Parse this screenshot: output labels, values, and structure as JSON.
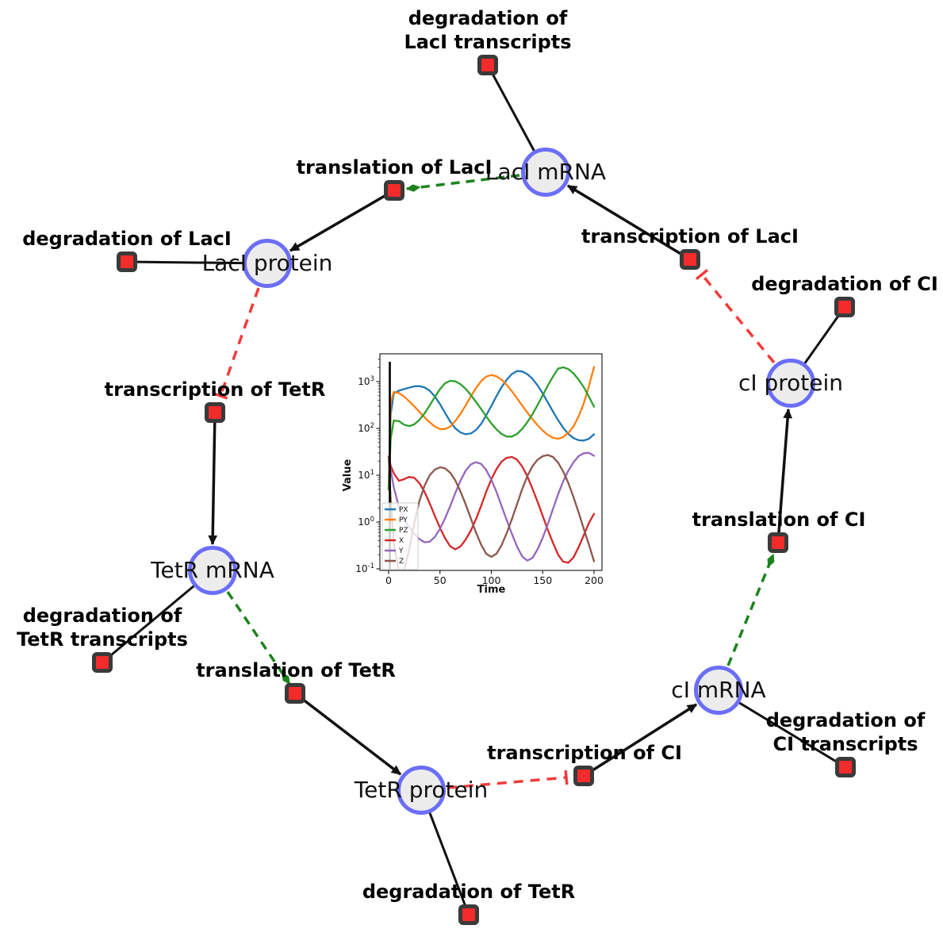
{
  "figure": {
    "background": "#ffffff",
    "colors": {
      "species_fill": "#ececec",
      "species_border": "#6b6ef7",
      "reaction_fill": "#f32b2b",
      "reaction_border": "#3a3a3a",
      "consumption_edge": "#111111",
      "production_edge": "#111111",
      "activation_edge": "#1c831c",
      "inhibition_edge": "#f23b3b"
    }
  },
  "diagram": {
    "species": {
      "laci_mrna": {
        "label": "LacI mRNA"
      },
      "laci_protein": {
        "label": "LacI protein"
      },
      "ci_protein": {
        "label": "cI protein"
      },
      "tetr_mrna": {
        "label": "TetR mRNA"
      },
      "tetr_protein": {
        "label": "TetR protein"
      },
      "ci_mrna": {
        "label": "cI mRNA"
      }
    },
    "reactions": {
      "deg_laci_tx": {
        "label": "degradation of LacI transcripts"
      },
      "transl_laci": {
        "label": "translation of LacI"
      },
      "txn_laci": {
        "label": "transcription of LacI"
      },
      "deg_laci": {
        "label": "degradation of LacI"
      },
      "deg_ci": {
        "label": "degradation of CI"
      },
      "txn_tetr": {
        "label": "transcription of TetR"
      },
      "deg_tetr_tx": {
        "label": "degradation of TetR transcripts"
      },
      "transl_tetr": {
        "label": "translation of TetR"
      },
      "txn_ci": {
        "label": "transcription of CI"
      },
      "deg_tetr": {
        "label": "degradation of TetR"
      },
      "deg_ci_tx": {
        "label": "degradation of CI transcripts"
      },
      "transl_ci": {
        "label": "translation of CI"
      }
    }
  },
  "chart_data": {
    "type": "line",
    "title": "",
    "xlabel": "Time",
    "ylabel": "Value",
    "x_ticks": [
      0,
      50,
      100,
      150,
      200
    ],
    "y_scale": "log",
    "y_tick_exponents": [
      -1,
      0,
      1,
      2,
      3
    ],
    "xlim": [
      -8,
      208
    ],
    "ylim": [
      0.07,
      4500
    ],
    "grid": false,
    "legend_position": "lower left",
    "vline_at_x": 0,
    "x": [
      0,
      2,
      5,
      10,
      15,
      20,
      25,
      30,
      35,
      40,
      45,
      50,
      55,
      60,
      65,
      70,
      75,
      80,
      85,
      90,
      95,
      100,
      105,
      110,
      115,
      120,
      125,
      130,
      135,
      140,
      145,
      150,
      155,
      160,
      165,
      170,
      175,
      180,
      185,
      190,
      195,
      200
    ],
    "series": [
      {
        "name": "PX",
        "color": "#1f77b4",
        "values": [
          5,
          200,
          560,
          640,
          690,
          740,
          790,
          800,
          750,
          640,
          480,
          330,
          215,
          140,
          100,
          82,
          75,
          78,
          92,
          125,
          190,
          300,
          490,
          760,
          1100,
          1450,
          1680,
          1650,
          1450,
          1150,
          830,
          560,
          360,
          230,
          150,
          103,
          76,
          62,
          56,
          55,
          60,
          75
        ]
      },
      {
        "name": "PY",
        "color": "#ff7f0e",
        "values": [
          5,
          350,
          600,
          570,
          480,
          380,
          295,
          225,
          172,
          135,
          110,
          97,
          97,
          110,
          145,
          205,
          310,
          480,
          720,
          1020,
          1280,
          1380,
          1300,
          1100,
          850,
          620,
          440,
          310,
          220,
          158,
          117,
          90,
          73,
          63,
          60,
          65,
          80,
          110,
          180,
          340,
          800,
          2050
        ]
      },
      {
        "name": "PZ",
        "color": "#2ca02c",
        "values": [
          5,
          60,
          148,
          143,
          120,
          112,
          122,
          152,
          210,
          310,
          470,
          690,
          920,
          1040,
          1010,
          880,
          700,
          520,
          370,
          260,
          180,
          128,
          95,
          76,
          67,
          67,
          76,
          97,
          135,
          200,
          315,
          510,
          820,
          1280,
          1900,
          2020,
          1850,
          1500,
          1100,
          760,
          480,
          290
        ]
      },
      {
        "name": "X",
        "color": "#d62728",
        "values": [
          25,
          16,
          11,
          7.6,
          8.2,
          9.2,
          8.8,
          6.8,
          4.4,
          2.5,
          1.35,
          0.75,
          0.45,
          0.3,
          0.26,
          0.3,
          0.42,
          0.65,
          1.15,
          2.2,
          4.4,
          8.2,
          13.5,
          19.5,
          23.5,
          24.5,
          21.5,
          15.5,
          9.5,
          5.2,
          2.7,
          1.35,
          0.68,
          0.36,
          0.2,
          0.142,
          0.135,
          0.175,
          0.29,
          0.52,
          0.95,
          1.5
        ]
      },
      {
        "name": "Y",
        "color": "#9467bd",
        "values": [
          25,
          13,
          5.5,
          2.1,
          1.15,
          0.78,
          0.56,
          0.43,
          0.37,
          0.38,
          0.48,
          0.72,
          1.2,
          2.2,
          4.2,
          7.6,
          12.5,
          17,
          19,
          17.5,
          13,
          8,
          4.4,
          2.2,
          1.1,
          0.56,
          0.3,
          0.185,
          0.15,
          0.17,
          0.26,
          0.46,
          0.9,
          1.9,
          3.9,
          7.4,
          12.5,
          19,
          25.5,
          29.5,
          30,
          26
        ]
      },
      {
        "name": "Z",
        "color": "#8c564b",
        "values": [
          25,
          3,
          0.35,
          0.085,
          0.09,
          0.26,
          0.95,
          2.8,
          6,
          10,
          13.2,
          14.8,
          14,
          11.3,
          7.7,
          4.5,
          2.4,
          1.2,
          0.6,
          0.33,
          0.21,
          0.18,
          0.21,
          0.32,
          0.58,
          1.15,
          2.4,
          5,
          9.5,
          15.5,
          21.5,
          25.5,
          27,
          24.5,
          18.5,
          12,
          6.8,
          3.4,
          1.6,
          0.72,
          0.33,
          0.145
        ]
      }
    ]
  }
}
